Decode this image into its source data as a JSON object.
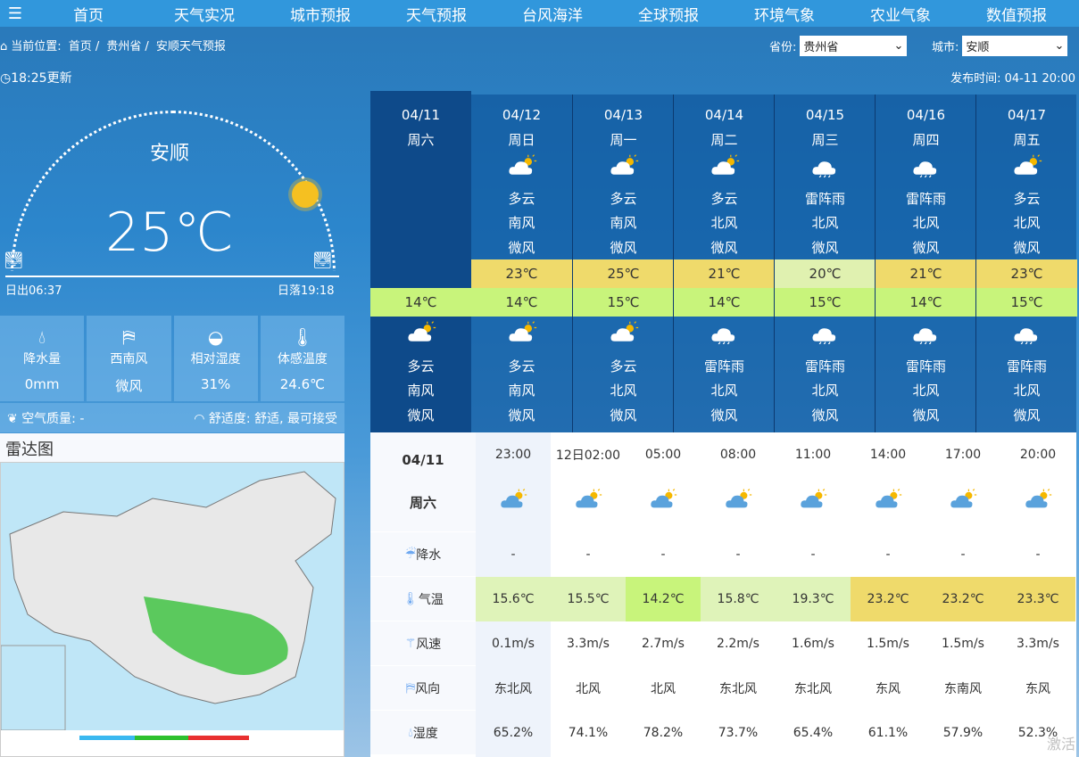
{
  "nav": {
    "menu_icon": "menu-icon",
    "items": [
      "首页",
      "天气实况",
      "城市预报",
      "天气预报",
      "台风海洋",
      "全球预报",
      "环境气象",
      "农业气象",
      "数值预报"
    ]
  },
  "breadcrumb": {
    "prefix": "当前位置:",
    "items": [
      "首页",
      "贵州省",
      "安顺天气预报"
    ],
    "sep": "/"
  },
  "update": "18:25更新",
  "selectors": {
    "province_label": "省份:",
    "province": "贵州省",
    "city_label": "城市:",
    "city": "安顺"
  },
  "publish": "发布时间: 04-11 20:00",
  "current": {
    "city": "安顺",
    "temp": "25℃",
    "sunrise": "日出06:37",
    "sunset": "日落19:18",
    "cells": [
      {
        "icon": "raindrops-icon",
        "label": "降水量",
        "value": "0mm"
      },
      {
        "icon": "wind-vane-icon",
        "label": "西南风",
        "value": "微风"
      },
      {
        "icon": "humidity-drop-icon",
        "label": "相对湿度",
        "value": "31%"
      },
      {
        "icon": "thermometer-icon",
        "label": "体感温度",
        "value": "24.6℃"
      }
    ],
    "air": "空气质量: -",
    "comfort": "舒适度: 舒适, 最可接受"
  },
  "radar": {
    "title": "雷达图"
  },
  "week": [
    {
      "date": "04/11",
      "day": "周六",
      "day_weather": "",
      "day_wind": "",
      "day_level": "",
      "high": "",
      "low": "14℃",
      "night_icon": "cloudy",
      "night_weather": "多云",
      "night_wind": "南风",
      "night_level": "微风"
    },
    {
      "date": "04/12",
      "day": "周日",
      "day_icon": "cloudy",
      "day_weather": "多云",
      "day_wind": "南风",
      "day_level": "微风",
      "high": "23℃",
      "low": "14℃",
      "night_icon": "cloudy",
      "night_weather": "多云",
      "night_wind": "南风",
      "night_level": "微风"
    },
    {
      "date": "04/13",
      "day": "周一",
      "day_icon": "cloudy",
      "day_weather": "多云",
      "day_wind": "南风",
      "day_level": "微风",
      "high": "25℃",
      "low": "15℃",
      "night_icon": "cloudy",
      "night_weather": "多云",
      "night_wind": "北风",
      "night_level": "微风"
    },
    {
      "date": "04/14",
      "day": "周二",
      "day_icon": "cloudy",
      "day_weather": "多云",
      "day_wind": "北风",
      "day_level": "微风",
      "high": "21℃",
      "low": "14℃",
      "night_icon": "thunder",
      "night_weather": "雷阵雨",
      "night_wind": "北风",
      "night_level": "微风"
    },
    {
      "date": "04/15",
      "day": "周三",
      "day_icon": "thunder",
      "day_weather": "雷阵雨",
      "day_wind": "北风",
      "day_level": "微风",
      "high": "20℃",
      "low": "15℃",
      "night_icon": "thunder",
      "night_weather": "雷阵雨",
      "night_wind": "北风",
      "night_level": "微风"
    },
    {
      "date": "04/16",
      "day": "周四",
      "day_icon": "thunder",
      "day_weather": "雷阵雨",
      "day_wind": "北风",
      "day_level": "微风",
      "high": "21℃",
      "low": "14℃",
      "night_icon": "thunder",
      "night_weather": "雷阵雨",
      "night_wind": "北风",
      "night_level": "微风"
    },
    {
      "date": "04/17",
      "day": "周五",
      "day_icon": "cloudy",
      "day_weather": "多云",
      "day_wind": "北风",
      "day_level": "微风",
      "high": "23℃",
      "low": "15℃",
      "night_icon": "thunder",
      "night_weather": "雷阵雨",
      "night_wind": "北风",
      "night_level": "微风"
    }
  ],
  "colors": {
    "high_warm": "#efda6b",
    "high_mild": "#e0f1b0",
    "low": "#c8f47b",
    "hour_mild": "#dff3b9",
    "hour_cool": "#c8f47b",
    "hour_warm": "#efda6b"
  },
  "hourly": {
    "date": "04/11",
    "day": "周六",
    "labels": [
      "降水",
      "气温",
      "风速",
      "风向",
      "湿度"
    ],
    "times": [
      "23:00",
      "12日02:00",
      "05:00",
      "08:00",
      "11:00",
      "14:00",
      "17:00",
      "20:00"
    ],
    "precip": [
      "-",
      "-",
      "-",
      "-",
      "-",
      "-",
      "-",
      "-"
    ],
    "temp": [
      "15.6℃",
      "15.5℃",
      "14.2℃",
      "15.8℃",
      "19.3℃",
      "23.2℃",
      "23.2℃",
      "23.3℃"
    ],
    "wind_speed": [
      "0.1m/s",
      "3.3m/s",
      "2.7m/s",
      "2.2m/s",
      "1.6m/s",
      "1.5m/s",
      "1.5m/s",
      "3.3m/s"
    ],
    "wind_dir": [
      "东北风",
      "北风",
      "北风",
      "东北风",
      "东北风",
      "东风",
      "东南风",
      "东风"
    ],
    "humidity": [
      "65.2%",
      "74.1%",
      "78.2%",
      "73.7%",
      "65.4%",
      "61.1%",
      "57.9%",
      "52.3%"
    ]
  },
  "watermark": "激活"
}
